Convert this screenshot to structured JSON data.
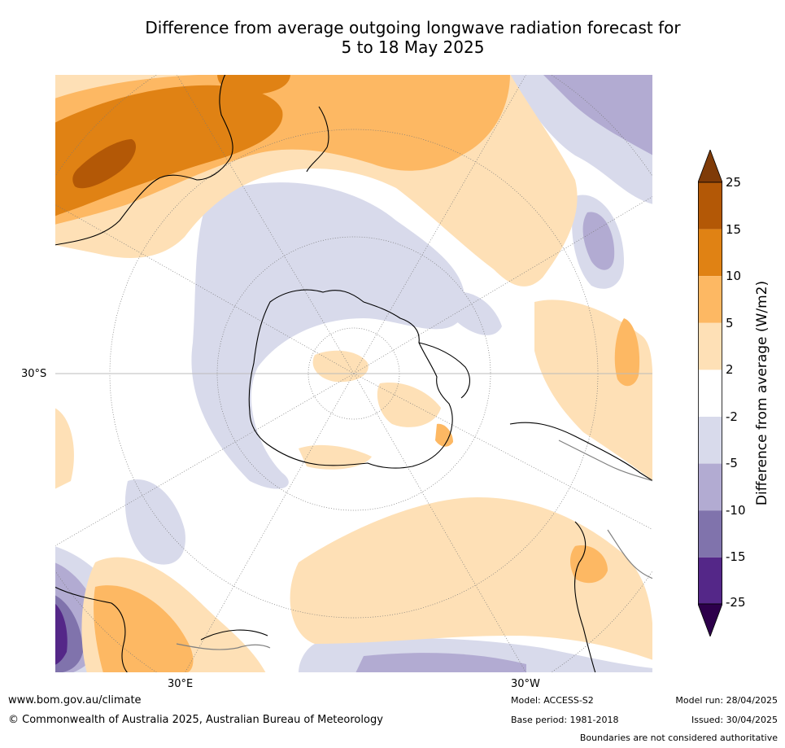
{
  "title": "Difference from average outgoing longwave radiation forecast for\n5 to 18 May 2025",
  "map": {
    "projection": "south polar stereographic",
    "graticule_labels": [
      "30°S",
      "30°E",
      "30°W"
    ],
    "land_outline_color": "#000000",
    "boundary_color": "#808080"
  },
  "legend": {
    "label": "Difference from average (W/m2)",
    "ticks": [
      "25",
      "15",
      "10",
      "5",
      "2",
      "-2",
      "-5",
      "-10",
      "-15",
      "-25"
    ],
    "bins": [
      {
        "range": "above 25",
        "color": "#7f3b08"
      },
      {
        "range": "15 to 25",
        "color": "#b35806"
      },
      {
        "range": "10 to 15",
        "color": "#e08214"
      },
      {
        "range": "5 to 10",
        "color": "#fdb863"
      },
      {
        "range": "2 to 5",
        "color": "#fee0b6"
      },
      {
        "range": "-2 to 2",
        "color": "#ffffff"
      },
      {
        "range": "-5 to -2",
        "color": "#d8daeb"
      },
      {
        "range": "-10 to -5",
        "color": "#b2abd2"
      },
      {
        "range": "-15 to -10",
        "color": "#8073ac"
      },
      {
        "range": "-25 to -15",
        "color": "#542788"
      },
      {
        "range": "below -25",
        "color": "#2d004b"
      }
    ]
  },
  "footer": {
    "website": "www.bom.gov.au/climate",
    "copyright": "© Commonwealth of Australia 2025, Australian Bureau of Meteorology",
    "model": "Model: ACCESS-S2",
    "base_period": "Base period: 1981-2018",
    "model_run": "Model run: 28/04/2025",
    "issued": "Issued: 30/04/2025",
    "disclaimer": "Boundaries are not considered authoritative"
  }
}
